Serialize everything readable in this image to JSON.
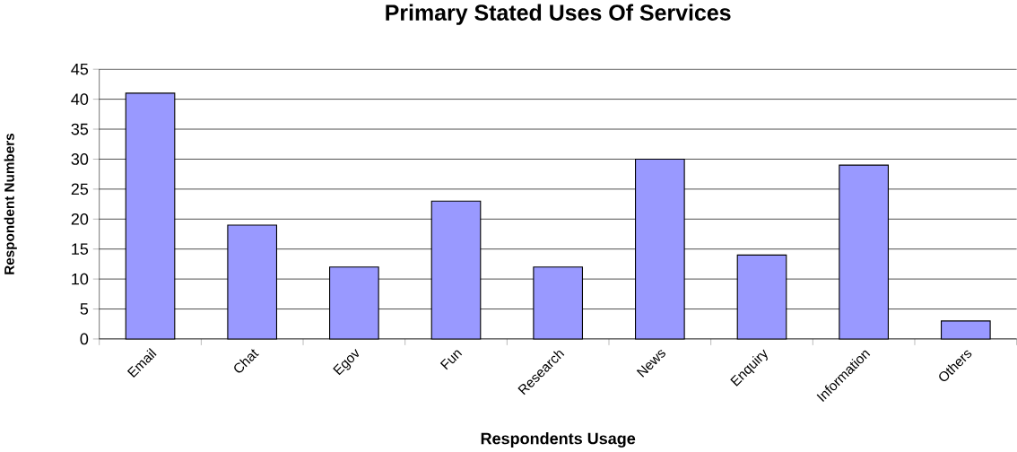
{
  "chart_data": {
    "type": "bar",
    "title": "Primary Stated Uses Of Services",
    "xlabel": "Respondents Usage",
    "ylabel": "Respondent Numbers",
    "categories": [
      "Email",
      "Chat",
      "Egov",
      "Fun",
      "Research",
      "News",
      "Enquiry",
      "Information",
      "Others"
    ],
    "values": [
      41,
      19,
      12,
      23,
      12,
      30,
      14,
      29,
      3
    ],
    "color": "#9999ff",
    "ylim": [
      0,
      45
    ],
    "yticks": [
      0,
      5,
      10,
      15,
      20,
      25,
      30,
      35,
      40,
      45
    ],
    "grid": "y"
  }
}
